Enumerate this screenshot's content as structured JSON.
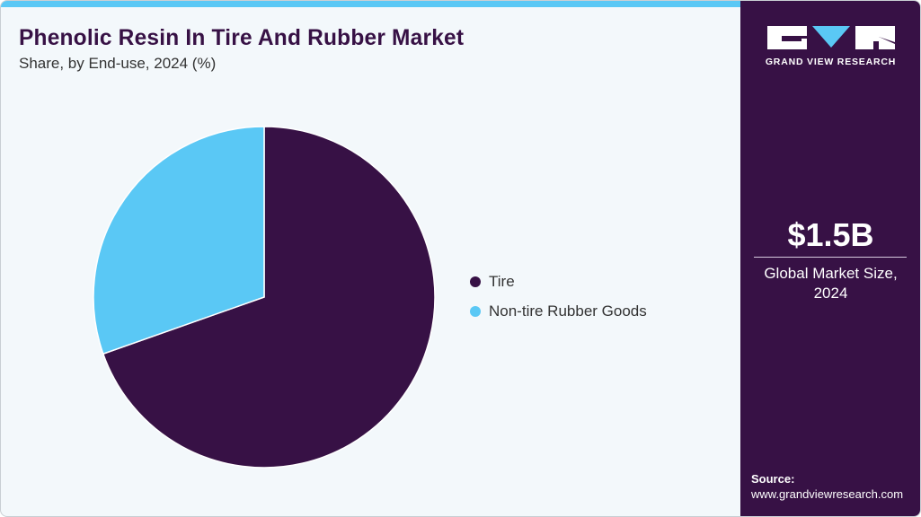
{
  "header": {
    "title": "Phenolic Resin In Tire And Rubber Market",
    "subtitle": "Share, by End-use, 2024 (%)"
  },
  "colors": {
    "tire": "#371145",
    "non_tire": "#5ac8f5",
    "accent_bar": "#5ac8f5",
    "side_panel": "#371145",
    "background": "#f3f8fb"
  },
  "legend": {
    "items": [
      {
        "label": "Tire",
        "color": "#371145"
      },
      {
        "label": "Non-tire Rubber Goods",
        "color": "#5ac8f5"
      }
    ]
  },
  "side_panel": {
    "brand": "GRAND VIEW RESEARCH",
    "logo_icon": "gvr-logo-icon",
    "market_value": "$1.5B",
    "market_label_line1": "Global Market Size,",
    "market_label_line2": "2024",
    "source_label": "Source:",
    "source_url": "www.grandviewresearch.com"
  },
  "chart_data": {
    "type": "pie",
    "title": "Phenolic Resin In Tire And Rubber Market",
    "subtitle": "Share, by End-use, 2024 (%)",
    "categories": [
      "Tire",
      "Non-tire Rubber Goods"
    ],
    "values": [
      69.6,
      30.4
    ],
    "colors": [
      "#371145",
      "#5ac8f5"
    ],
    "start_angle_deg": 0,
    "direction": "clockwise",
    "legend_position": "right",
    "data_labels": false
  }
}
